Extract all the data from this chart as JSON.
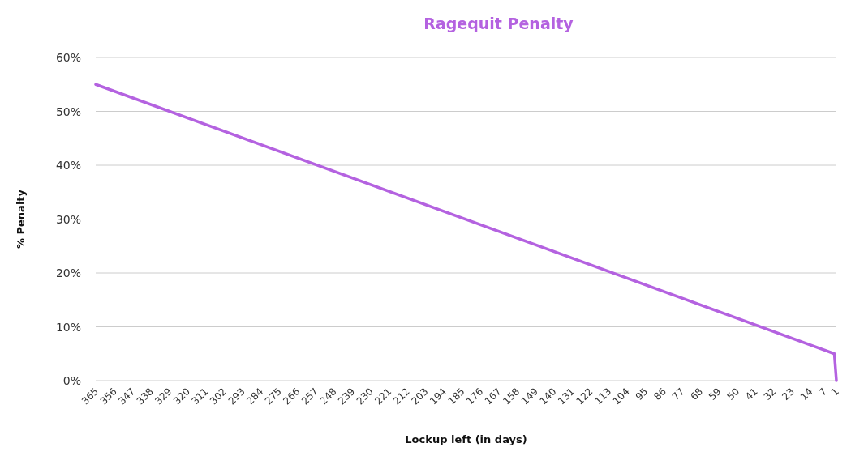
{
  "chart_data": {
    "type": "line",
    "title": "Ragequit Penalty",
    "xlabel": "Lockup left (in days)",
    "ylabel": "% Penalty",
    "x": [
      365,
      2,
      1
    ],
    "series": [
      {
        "color": "#b462e0",
        "values": [
          55,
          5,
          0
        ]
      }
    ],
    "xlim": [
      365,
      1
    ],
    "xticks": [
      365,
      356,
      347,
      338,
      329,
      320,
      311,
      302,
      293,
      284,
      275,
      266,
      257,
      248,
      239,
      230,
      221,
      212,
      203,
      194,
      185,
      176,
      167,
      158,
      149,
      140,
      131,
      122,
      113,
      104,
      95,
      86,
      77,
      68,
      59,
      50,
      41,
      32,
      23,
      14,
      7,
      1
    ],
    "ylim": [
      0,
      60
    ],
    "yticks": [
      {
        "value": 0,
        "label": "0%"
      },
      {
        "value": 10,
        "label": "10%"
      },
      {
        "value": 20,
        "label": "20%"
      },
      {
        "value": 30,
        "label": "30%"
      },
      {
        "value": 40,
        "label": "40%"
      },
      {
        "value": 50,
        "label": "50%"
      },
      {
        "value": 60,
        "label": "60%"
      }
    ],
    "grid": "y",
    "line_style": "solid",
    "marker": "none"
  }
}
